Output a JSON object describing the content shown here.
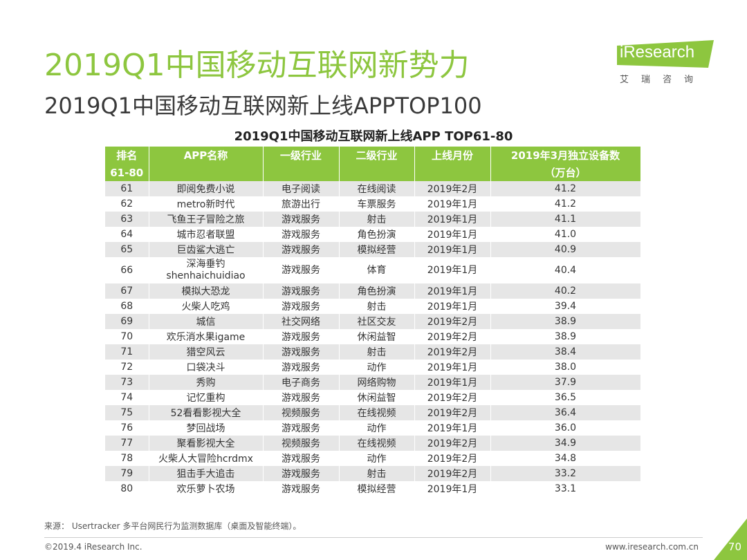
{
  "page": {
    "title": "2019Q1中国移动互联网新势力",
    "subtitle": "2019Q1中国移动互联网新上线APPTOP100",
    "logo_text": "iResearch",
    "logo_sub": "艾瑞咨询",
    "table_title": "2019Q1中国移动互联网新上线APP TOP61-80",
    "source": "来源： Usertracker 多平台网民行为监测数据库（桌面及智能终端）。",
    "copyright": "©2019.4 iResearch Inc.",
    "website": "www.iresearch.com.cn",
    "page_number": "70",
    "accent_color": "#8dc63f"
  },
  "table": {
    "headers": [
      "排名",
      "APP名称",
      "一级行业",
      "二级行业",
      "上线月份",
      "2019年3月独立设备数"
    ],
    "subheaders": [
      "61-80",
      "",
      "",
      "",
      "",
      "（万台）"
    ],
    "rows": [
      [
        "61",
        "即阅免费小说",
        "电子阅读",
        "在线阅读",
        "2019年2月",
        "41.2"
      ],
      [
        "62",
        "metro新时代",
        "旅游出行",
        "车票服务",
        "2019年1月",
        "41.2"
      ],
      [
        "63",
        "飞鱼王子冒险之旅",
        "游戏服务",
        "射击",
        "2019年1月",
        "41.1"
      ],
      [
        "64",
        "城市忍者联盟",
        "游戏服务",
        "角色扮演",
        "2019年1月",
        "41.0"
      ],
      [
        "65",
        "巨齿鲨大逃亡",
        "游戏服务",
        "模拟经营",
        "2019年1月",
        "40.9"
      ],
      [
        "66",
        "深海垂钓 shenhaichuidiao",
        "游戏服务",
        "体育",
        "2019年1月",
        "40.4"
      ],
      [
        "67",
        "模拟大恐龙",
        "游戏服务",
        "角色扮演",
        "2019年1月",
        "40.2"
      ],
      [
        "68",
        "火柴人吃鸡",
        "游戏服务",
        "射击",
        "2019年1月",
        "39.4"
      ],
      [
        "69",
        "城信",
        "社交网络",
        "社区交友",
        "2019年2月",
        "38.9"
      ],
      [
        "70",
        "欢乐消水果igame",
        "游戏服务",
        "休闲益智",
        "2019年2月",
        "38.9"
      ],
      [
        "71",
        "猎空风云",
        "游戏服务",
        "射击",
        "2019年2月",
        "38.4"
      ],
      [
        "72",
        "口袋决斗",
        "游戏服务",
        "动作",
        "2019年1月",
        "38.0"
      ],
      [
        "73",
        "秀购",
        "电子商务",
        "网络购物",
        "2019年1月",
        "37.9"
      ],
      [
        "74",
        "记忆重构",
        "游戏服务",
        "休闲益智",
        "2019年2月",
        "36.5"
      ],
      [
        "75",
        "52看看影视大全",
        "视频服务",
        "在线视频",
        "2019年2月",
        "36.4"
      ],
      [
        "76",
        "梦回战场",
        "游戏服务",
        "动作",
        "2019年1月",
        "36.0"
      ],
      [
        "77",
        "聚看影视大全",
        "视频服务",
        "在线视频",
        "2019年2月",
        "34.9"
      ],
      [
        "78",
        "火柴人大冒险hcrdmx",
        "游戏服务",
        "动作",
        "2019年2月",
        "34.8"
      ],
      [
        "79",
        "狙击手大追击",
        "游戏服务",
        "射击",
        "2019年2月",
        "33.2"
      ],
      [
        "80",
        "欢乐萝卜农场",
        "游戏服务",
        "模拟经营",
        "2019年1月",
        "33.1"
      ]
    ]
  }
}
